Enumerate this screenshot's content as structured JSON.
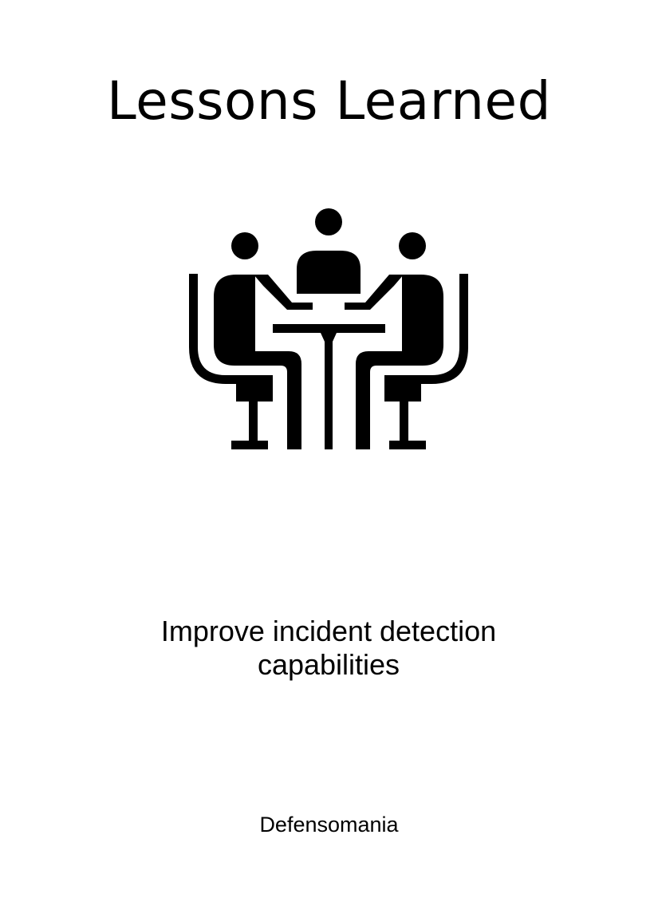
{
  "cover": {
    "title": "Lessons Learned",
    "illustration_icon": "meeting-table-people-icon",
    "subtitle_lines": [
      "Improve incident detection",
      "capabilities"
    ],
    "author": "Defensomania"
  },
  "colors": {
    "text": "#000000",
    "background": "#ffffff"
  }
}
